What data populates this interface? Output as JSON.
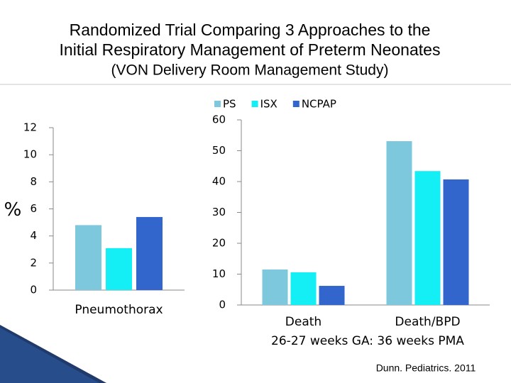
{
  "slide": {
    "title": [
      "Randomized Trial Comparing 3 Approaches to the",
      "Initial Respiratory Management of Preterm Neonates",
      "(VON Delivery Room Management Study)"
    ],
    "citation": "Dunn. Pediatrics. 2011"
  },
  "chart_data": [
    {
      "type": "bar",
      "y_label": "%",
      "categories": [
        "Pneumothorax"
      ],
      "series": [
        {
          "color": "#7ec8de",
          "values": [
            4.8
          ]
        },
        {
          "color": "#14eef5",
          "values": [
            3.1
          ]
        },
        {
          "color": "#3366cc",
          "values": [
            5.4
          ]
        }
      ],
      "ylim": [
        0,
        12
      ],
      "yticks": [
        0,
        2,
        4,
        6,
        8,
        10,
        12
      ],
      "grid": false
    },
    {
      "type": "bar",
      "x_label": "26-27 weeks GA: 36 weeks PMA",
      "categories": [
        "Death",
        "Death/BPD"
      ],
      "series": [
        {
          "name": "PS",
          "color": "#7ec8de",
          "values": [
            11.5,
            53.1
          ]
        },
        {
          "name": "ISX",
          "color": "#14eef5",
          "values": [
            10.6,
            43.4
          ]
        },
        {
          "name": "NCPAP",
          "color": "#3366cc",
          "values": [
            6.2,
            40.7
          ]
        }
      ],
      "ylim": [
        0,
        60
      ],
      "yticks": [
        0,
        10,
        20,
        30,
        40,
        50,
        60
      ],
      "grid": false,
      "legend": "top"
    }
  ]
}
